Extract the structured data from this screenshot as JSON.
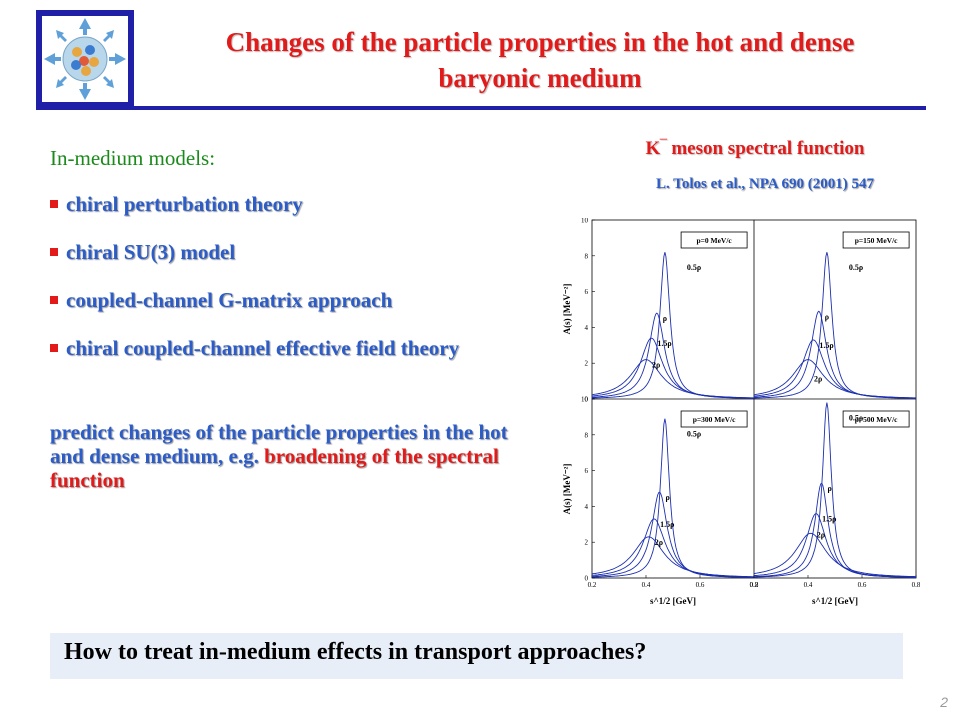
{
  "header": {
    "title_line1": "Changes of the particle properties in the hot and dense",
    "title_line2": "baryonic medium"
  },
  "left": {
    "heading": "In-medium models:",
    "bullets": [
      "chiral perturbation theory",
      "chiral SU(3) model",
      "coupled-channel G-matrix approach",
      "chiral coupled-channel effective field theory"
    ],
    "predict_blue": "predict changes of the particle properties in the hot and dense medium, e.g.",
    "predict_red": "broadening of the spectral function"
  },
  "figure": {
    "title": "K‾ meson spectral function",
    "reference": "L. Tolos et al., NPA 690 (2001) 547",
    "ylabel": "A(s) [MeV⁻²]",
    "xlabel": "s^1/2 [GeV]",
    "panels": [
      "p=0 MeV/c",
      "p=150 MeV/c",
      "p=300 MeV/c",
      "p=500 MeV/c"
    ],
    "curve_labels": [
      "0.5ρ",
      "ρ",
      "1.5ρ",
      "2ρ"
    ]
  },
  "chart_data": {
    "type": "line",
    "title": "K‾ meson spectral function",
    "xlabel": "s^1/2 [GeV]",
    "ylabel": "A(s) [MeV⁻²]",
    "xlim": [
      0.2,
      0.8
    ],
    "ylim": [
      0,
      10
    ],
    "xticks": [
      0.2,
      0.4,
      0.6,
      0.8
    ],
    "yticks": [
      0,
      2,
      4,
      6,
      8,
      10
    ],
    "panels": [
      {
        "label": "p=0 MeV/c",
        "series": [
          {
            "name": "0.5ρ",
            "peak_x": 0.47,
            "peak_y": 8.2,
            "width": 0.022
          },
          {
            "name": "ρ",
            "peak_x": 0.44,
            "peak_y": 4.8,
            "width": 0.035
          },
          {
            "name": "1.5ρ",
            "peak_x": 0.42,
            "peak_y": 3.4,
            "width": 0.05
          },
          {
            "name": "2ρ",
            "peak_x": 0.4,
            "peak_y": 2.2,
            "width": 0.07
          }
        ]
      },
      {
        "label": "p=150 MeV/c",
        "series": [
          {
            "name": "0.5ρ",
            "peak_x": 0.47,
            "peak_y": 8.2,
            "width": 0.022
          },
          {
            "name": "ρ",
            "peak_x": 0.44,
            "peak_y": 4.9,
            "width": 0.035
          },
          {
            "name": "1.5ρ",
            "peak_x": 0.42,
            "peak_y": 3.3,
            "width": 0.05
          },
          {
            "name": "2ρ",
            "peak_x": 0.4,
            "peak_y": 2.2,
            "width": 0.07
          }
        ]
      },
      {
        "label": "p=300 MeV/c",
        "series": [
          {
            "name": "0.5ρ",
            "peak_x": 0.47,
            "peak_y": 8.9,
            "width": 0.02
          },
          {
            "name": "ρ",
            "peak_x": 0.45,
            "peak_y": 4.8,
            "width": 0.035
          },
          {
            "name": "1.5ρ",
            "peak_x": 0.43,
            "peak_y": 3.3,
            "width": 0.05
          },
          {
            "name": "2ρ",
            "peak_x": 0.41,
            "peak_y": 2.3,
            "width": 0.07
          }
        ]
      },
      {
        "label": "p=500 MeV/c",
        "series": [
          {
            "name": "0.5ρ",
            "peak_x": 0.47,
            "peak_y": 9.8,
            "width": 0.02
          },
          {
            "name": "ρ",
            "peak_x": 0.45,
            "peak_y": 5.3,
            "width": 0.03
          },
          {
            "name": "1.5ρ",
            "peak_x": 0.43,
            "peak_y": 3.6,
            "width": 0.045
          },
          {
            "name": "2ρ",
            "peak_x": 0.41,
            "peak_y": 2.5,
            "width": 0.07
          }
        ]
      }
    ]
  },
  "banner": {
    "text": "How to treat in-medium effects in transport approaches?"
  },
  "page_number": "2",
  "colors": {
    "title_red": "#e21a1a",
    "text_blue": "#2c5cc8",
    "frame_blue": "#1f1fa8",
    "heading_green": "#1a8a1a",
    "curve_blue": "#1c2fb0"
  }
}
